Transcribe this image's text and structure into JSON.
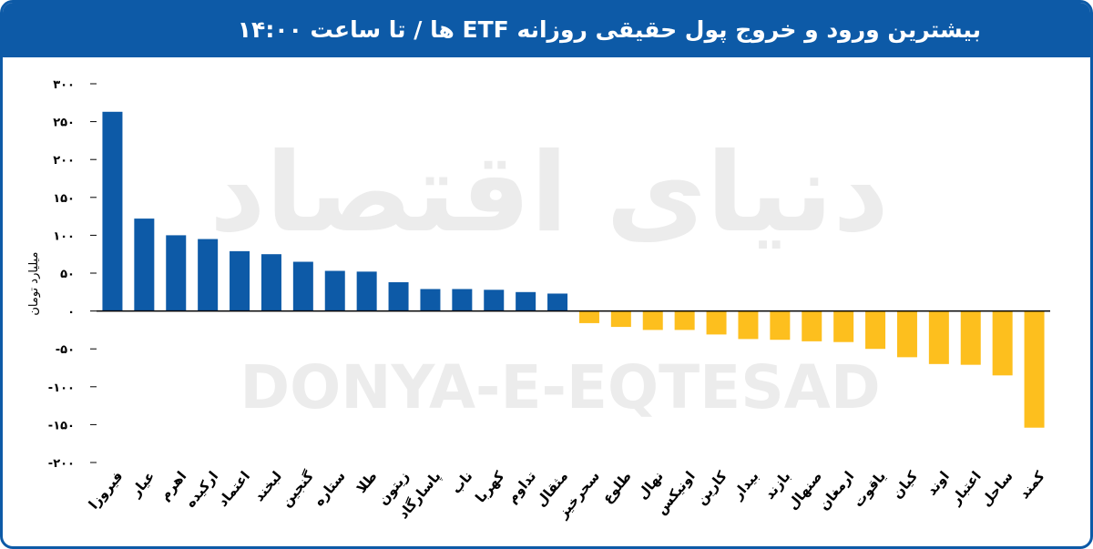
{
  "title": "بیشترین ورود و خروج پول حقیقی روزانه ETF ها / تا ساعت ۱۴:۰۰",
  "chart_data": {
    "type": "bar",
    "ylabel": "میلیارد تومان",
    "ylim": [
      -200,
      300
    ],
    "yticks": [
      300,
      250,
      200,
      150,
      100,
      50,
      0,
      -50,
      -100,
      -150,
      -200
    ],
    "ytick_labels": [
      "۳۰۰",
      "۲۵۰",
      "۲۰۰",
      "۱۵۰",
      "۱۰۰",
      "۵۰",
      "۰",
      "-۵۰",
      "-۱۰۰",
      "-۱۵۰",
      "-۲۰۰"
    ],
    "categories": [
      "فیروزا",
      "عیار",
      "اهرم",
      "ارکیده",
      "اعتماد",
      "لبخند",
      "گنجین",
      "ستاره",
      "طلا",
      "زیتون",
      "پاسارگاد",
      "ناب",
      "کهربا",
      "تداوم",
      "مثقال",
      "سحرخیز",
      "طلوع",
      "نهال",
      "اونیکس",
      "کارین",
      "بیدار",
      "بازند",
      "صنهال",
      "ارمغان",
      "یاقوت",
      "کیان",
      "اوند",
      "اعتبار",
      "ساحل",
      "کمند"
    ],
    "values": [
      263,
      122,
      100,
      95,
      79,
      75,
      65,
      53,
      52,
      38,
      29,
      29,
      28,
      25,
      23,
      -16,
      -21,
      -25,
      -25,
      -31,
      -37,
      -38,
      -40,
      -41,
      -50,
      -61,
      -70,
      -71,
      -85,
      -154
    ],
    "colors": {
      "positive": "#0d5aa7",
      "negative": "#fdbf1e"
    },
    "watermark": {
      "persian": "دنیای اقتصاد",
      "latin": "DONYA-E-EQTESAD"
    }
  }
}
